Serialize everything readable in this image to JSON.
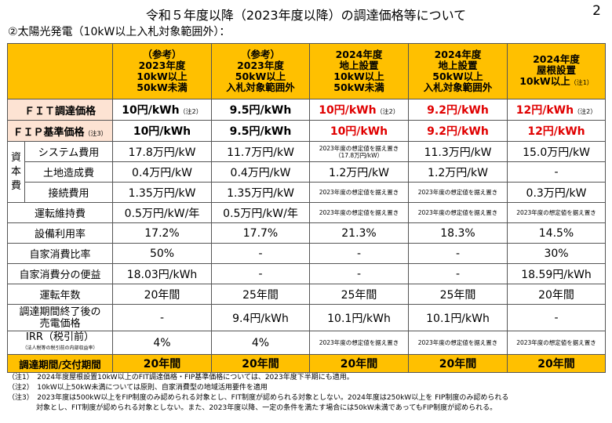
{
  "page": {
    "title": "令和５年度以降（2023年度以降）の調達価格等について",
    "number": "2",
    "subtitle": "②太陽光発電（10kW以上入札対象範囲外）："
  },
  "columns": [
    {
      "l1": "（参考）",
      "l2": "2023年度",
      "l3": "10kW以上",
      "l4": "50kW未満",
      "note": ""
    },
    {
      "l1": "（参考）",
      "l2": "2023年度",
      "l3": "50kW以上",
      "l4": "入札対象範囲外",
      "note": ""
    },
    {
      "l1": "2024年度",
      "l2": "地上設置",
      "l3": "10kW以上",
      "l4": "50kW未満",
      "note": ""
    },
    {
      "l1": "2024年度",
      "l2": "地上設置",
      "l3": "50kW以上",
      "l4": "入札対象範囲外",
      "note": ""
    },
    {
      "l1": "2024年度",
      "l2": "屋根設置",
      "l3": "10kW以上",
      "l4": "",
      "note": "（注1）"
    }
  ],
  "fit": {
    "label": "ＦＩＴ調達価格",
    "values": [
      "10円/kWh",
      "9.5円/kWh",
      "10円/kWh",
      "9.2円/kWh",
      "12円/kWh"
    ],
    "notes": [
      "（注2）",
      "",
      "（注2）",
      "",
      "（注2）"
    ]
  },
  "fip": {
    "label": "ＦＩＰ基準価格",
    "note": "（注3）",
    "values": [
      "10円/kWh",
      "9.5円/kWh",
      "10円/kWh",
      "9.2円/kWh",
      "12円/kWh"
    ]
  },
  "capital_label": "資本費",
  "rows": {
    "system": {
      "label": "システム費用",
      "v": [
        "17.8万円/kW",
        "11.7万円/kW",
        "2023年度の想定値を据え置き（17.8万円/kW）",
        "11.3万円/kW",
        "15.0万円/kW"
      ]
    },
    "land": {
      "label": "土地造成費",
      "v": [
        "0.4万円/kW",
        "0.4万円/kW",
        "1.2万円/kW",
        "1.2万円/kW",
        "-"
      ]
    },
    "grid": {
      "label": "接続費用",
      "v": [
        "1.35万円/kW",
        "1.35万円/kW",
        "2023年度の想定値を据え置き",
        "2023年度の想定値を据え置き",
        "0.3万円/kW"
      ]
    },
    "om": {
      "label": "運転維持費",
      "v": [
        "0.5万円/kW/年",
        "0.5万円/kW/年",
        "2023年度の想定値を据え置き",
        "2023年度の想定値を据え置き",
        "2023年度の想定値を据え置き"
      ]
    },
    "cf": {
      "label": "設備利用率",
      "v": [
        "17.2%",
        "17.7%",
        "21.3%",
        "18.3%",
        "14.5%"
      ]
    },
    "selfratio": {
      "label": "自家消費比率",
      "v": [
        "50%",
        "-",
        "-",
        "-",
        "30%"
      ]
    },
    "selfbenefit": {
      "label": "自家消費分の便益",
      "v": [
        "18.03円/kWh",
        "-",
        "-",
        "-",
        "18.59円/kWh"
      ]
    },
    "years": {
      "label": "運転年数",
      "v": [
        "20年間",
        "25年間",
        "25年間",
        "25年間",
        "20年間"
      ]
    },
    "after": {
      "label1": "調達期間終了後の",
      "label2": "売電価格",
      "v": [
        "-",
        "9.4円/kWh",
        "10.1円/kWh",
        "10.1円/kWh",
        "-"
      ]
    },
    "irr": {
      "label1": "IRR（税引前）",
      "label2": "（法人税等の税引前の内部収益率）",
      "v": [
        "4%",
        "4%",
        "2023年度の想定値を据え置き",
        "2023年度の想定値を据え置き",
        "2023年度の想定値を据え置き"
      ]
    },
    "period": {
      "label": "調達期間/交付期間",
      "v": [
        "20年間",
        "20年間",
        "20年間",
        "20年間",
        "20年間"
      ]
    }
  },
  "notes": [
    "（注1）　2024年度屋根設置10kW以上のFIT調達価格・FIP基準価格については、2023年度下半期にも適用。",
    "（注2）　10kW以上50kW未満については原則、自家消費型の地域活用要件を適用",
    "（注3）　2023年度は500kW以上をFIP制度のみ認められる対象とし、FIT制度が認められる対象としない。2024年度は250kW以上を FIP制度のみ認められる",
    "　　　　対象とし、FIT制度が認められる対象としない。また、2023年度以降、一定の条件を満たす場合には50kW未満であってもFIP制度が認められる。"
  ]
}
